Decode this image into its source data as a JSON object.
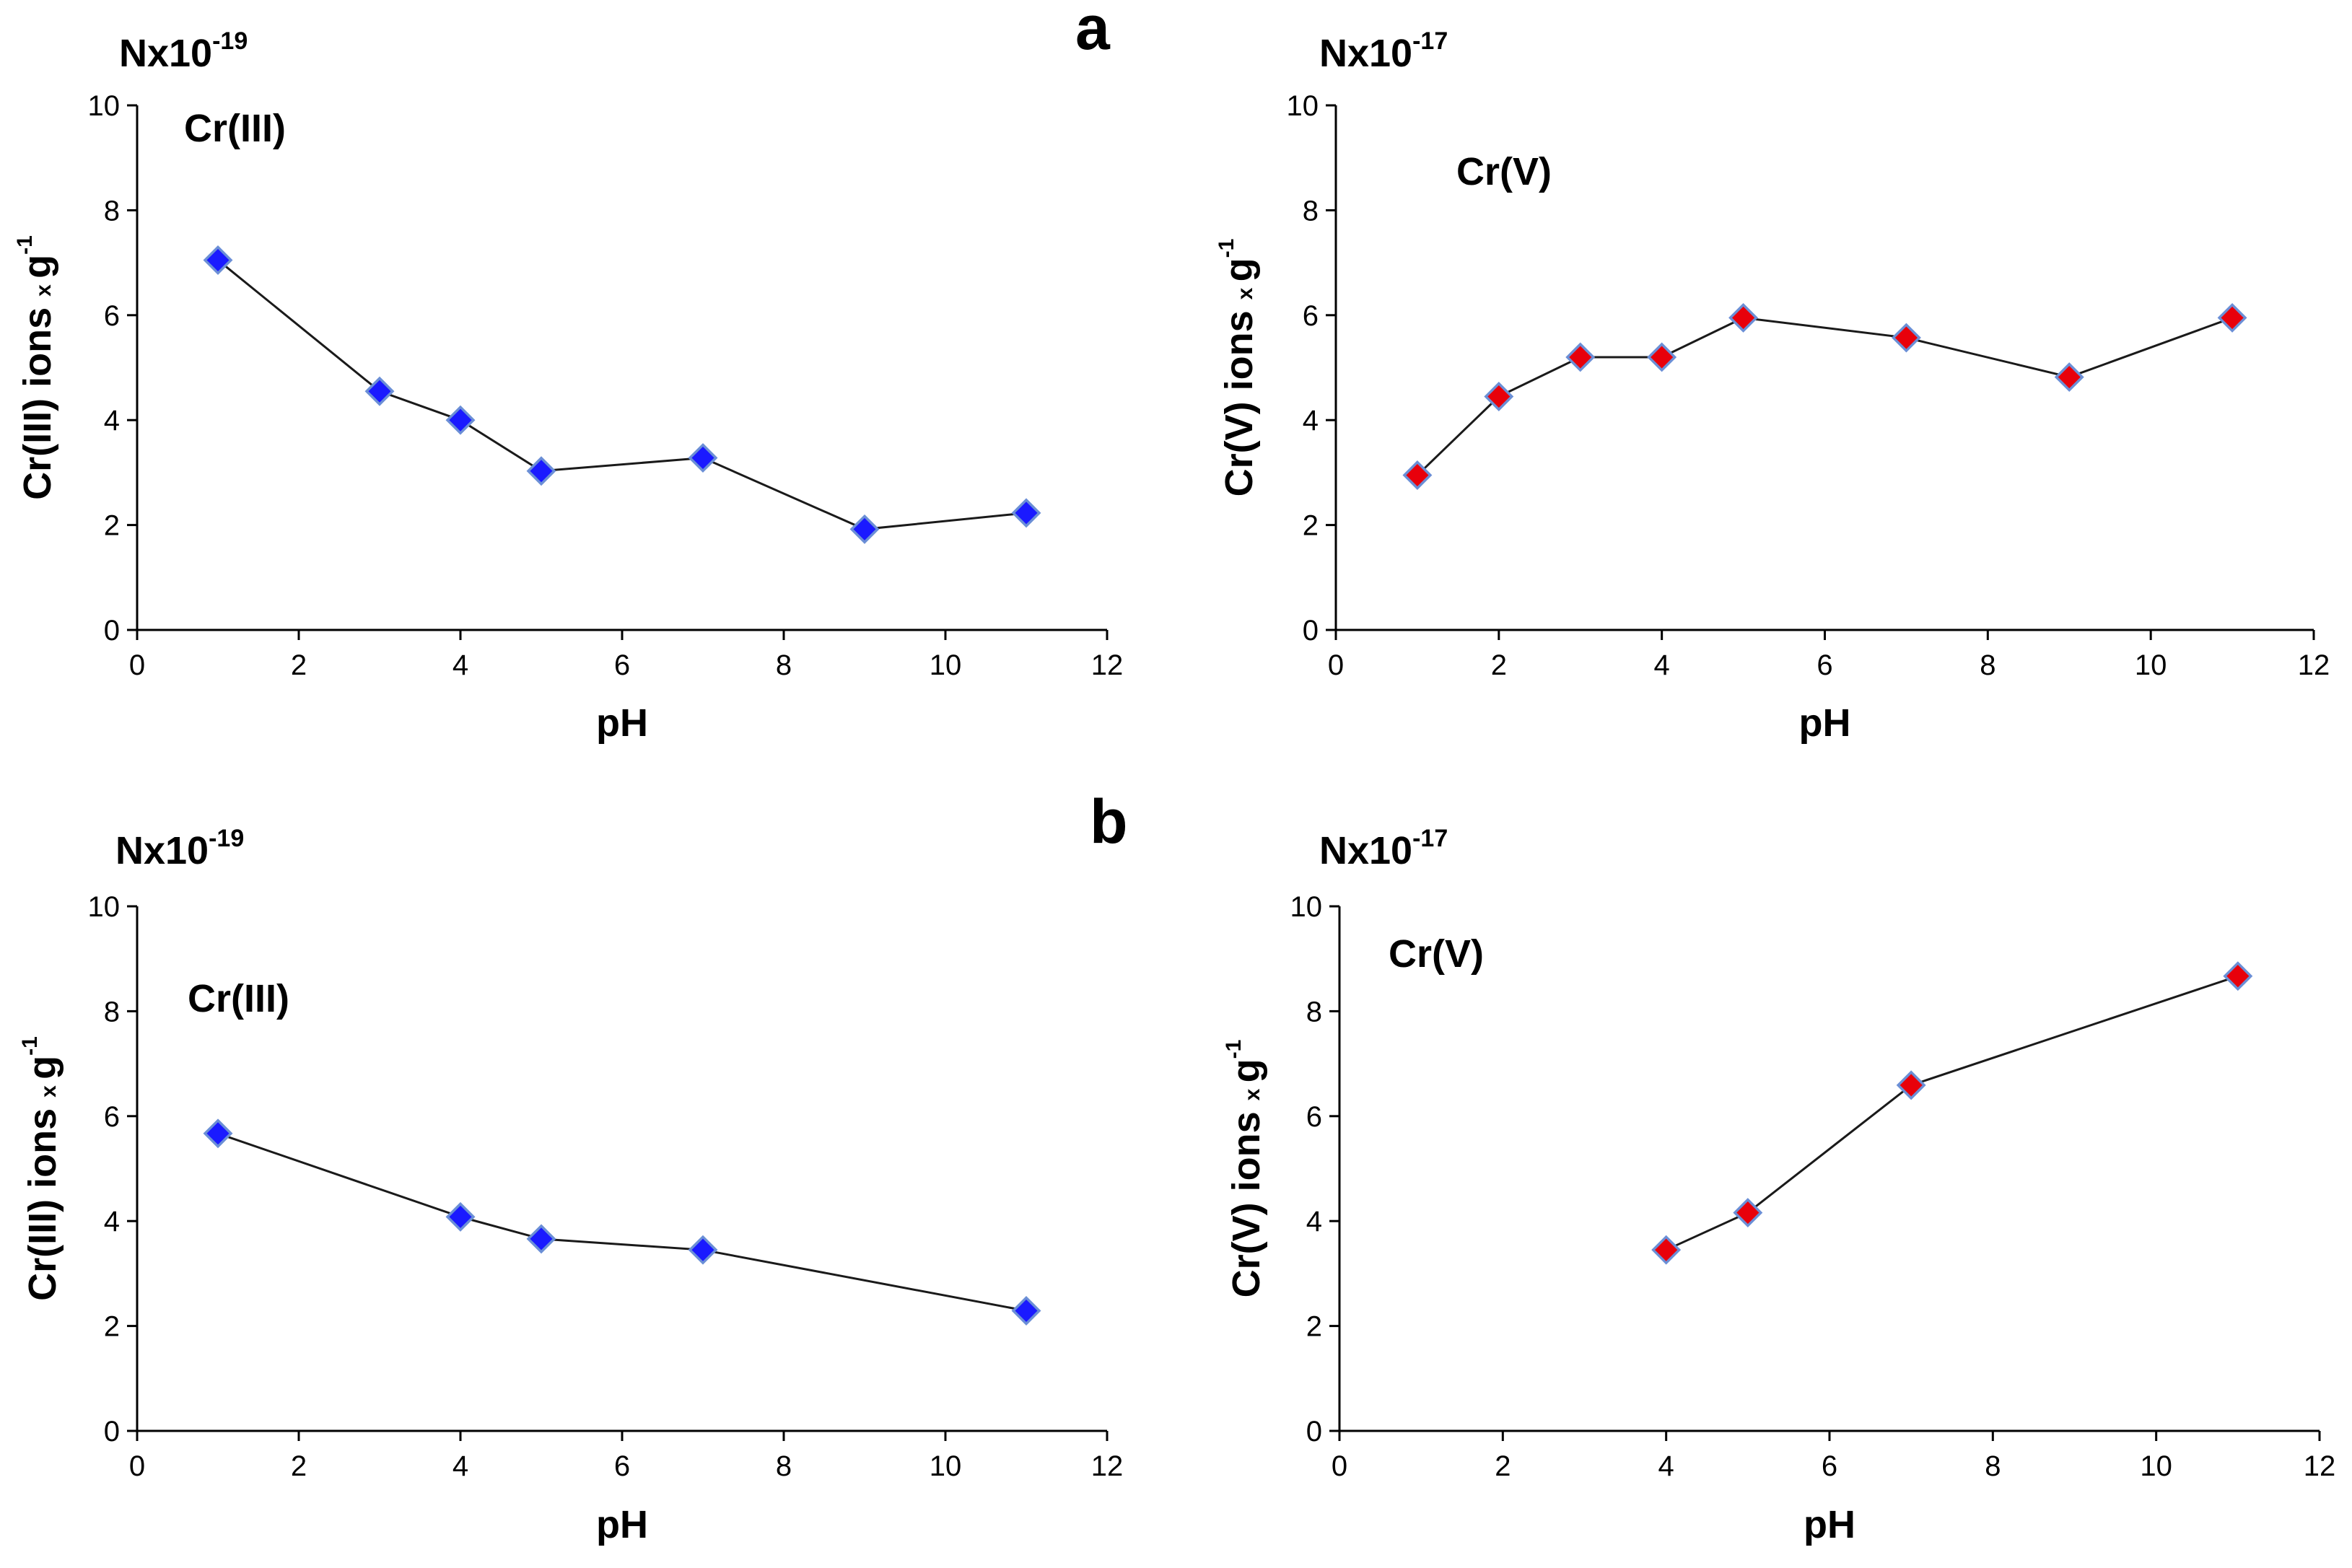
{
  "panel_labels": {
    "a": "a",
    "b": "b"
  },
  "chart_data": [
    {
      "id": "a-left",
      "type": "line",
      "panel": "a",
      "scale_label": {
        "base": "Nx10",
        "exponent": "-19"
      },
      "series_label": "Cr(III)",
      "xlabel": "pH",
      "ylabel": {
        "main": "Cr(III) ions",
        "x": "x",
        "g": "g",
        "exp": "-1"
      },
      "xlim": [
        0,
        12
      ],
      "ylim": [
        0,
        10
      ],
      "xticks": [
        0,
        2,
        4,
        6,
        8,
        10,
        12
      ],
      "yticks": [
        0,
        2,
        4,
        6,
        8,
        10
      ],
      "marker_color": "#1a1aff",
      "series": [
        {
          "name": "Cr(III)",
          "x": [
            1,
            3,
            4,
            5,
            7,
            9,
            11
          ],
          "y": [
            7.05,
            4.55,
            4.0,
            3.03,
            3.28,
            1.92,
            2.23
          ]
        }
      ]
    },
    {
      "id": "a-right",
      "type": "line",
      "panel": "a",
      "scale_label": {
        "base": "Nx10",
        "exponent": "-17"
      },
      "series_label": "Cr(V)",
      "xlabel": "pH",
      "ylabel": {
        "main": "Cr(V) ions",
        "x": "x",
        "g": "g",
        "exp": "-1"
      },
      "xlim": [
        0,
        12
      ],
      "ylim": [
        0,
        10
      ],
      "xticks": [
        0,
        2,
        4,
        6,
        8,
        10,
        12
      ],
      "yticks": [
        0,
        2,
        4,
        6,
        8,
        10
      ],
      "marker_color": "#e8000b",
      "series": [
        {
          "name": "Cr(V)",
          "x": [
            1,
            2,
            3,
            4,
            5,
            7,
            9,
            11
          ],
          "y": [
            2.95,
            4.45,
            5.2,
            5.2,
            5.95,
            5.57,
            4.82,
            5.95
          ]
        }
      ]
    },
    {
      "id": "b-left",
      "type": "line",
      "panel": "b",
      "scale_label": {
        "base": "Nx10",
        "exponent": "-19"
      },
      "series_label": "Cr(III)",
      "xlabel": "pH",
      "ylabel": {
        "main": "Cr(III) ions",
        "x": "x",
        "g": "g",
        "exp": "-1"
      },
      "xlim": [
        0,
        12
      ],
      "ylim": [
        0,
        10
      ],
      "xticks": [
        0,
        2,
        4,
        6,
        8,
        10,
        12
      ],
      "yticks": [
        0,
        2,
        4,
        6,
        8,
        10
      ],
      "marker_color": "#1a1aff",
      "series": [
        {
          "name": "Cr(III)",
          "x": [
            1,
            4,
            5,
            7,
            11
          ],
          "y": [
            5.67,
            4.08,
            3.66,
            3.45,
            2.29
          ]
        }
      ]
    },
    {
      "id": "b-right",
      "type": "line",
      "panel": "b",
      "scale_label": {
        "base": "Nx10",
        "exponent": "-17"
      },
      "series_label": "Cr(V)",
      "xlabel": "pH",
      "ylabel": {
        "main": "Cr(V) ions",
        "x": "x",
        "g": "g",
        "exp": "-1"
      },
      "xlim": [
        0,
        12
      ],
      "ylim": [
        0,
        10
      ],
      "xticks": [
        0,
        2,
        4,
        6,
        8,
        10,
        12
      ],
      "yticks": [
        0,
        2,
        4,
        6,
        8,
        10
      ],
      "marker_color": "#e8000b",
      "series": [
        {
          "name": "Cr(V)",
          "x": [
            4,
            5,
            7,
            11
          ],
          "y": [
            3.45,
            4.16,
            6.59,
            8.67
          ]
        }
      ]
    }
  ]
}
